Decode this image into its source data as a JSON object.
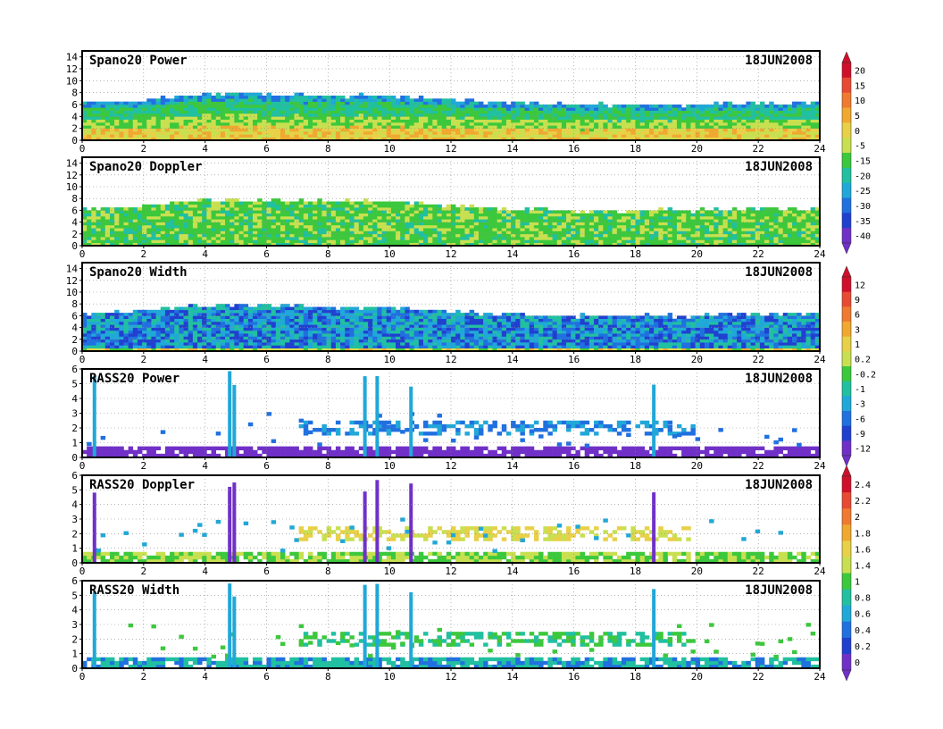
{
  "chart_data": [
    {
      "type": "heatmap",
      "title": "Spano20 Power",
      "date": "18JUN2008",
      "xlim": [
        0,
        24
      ],
      "x_ticks": [
        "0",
        "2",
        "4",
        "6",
        "8",
        "10",
        "12",
        "14",
        "16",
        "18",
        "20",
        "22",
        "24"
      ],
      "ylim": [
        0,
        15
      ],
      "y_ticks": [
        "0",
        "2",
        "4",
        "6",
        "8",
        "10",
        "12",
        "14"
      ],
      "grid": true,
      "approx_top_height": [
        6.2,
        6.8,
        7.8,
        7.8,
        7.5,
        7.5,
        6.8,
        6.2,
        6.0,
        6.0,
        6.0,
        6.2,
        6.5
      ],
      "colorbar": {
        "labels": [
          "20",
          "15",
          "10",
          "5",
          "0",
          "-5",
          "-15",
          "-20",
          "-25",
          "-30",
          "-35",
          "-40"
        ],
        "colors": [
          "#d0102a",
          "#e84a32",
          "#f07a30",
          "#f0a830",
          "#e8d048",
          "#c8e050",
          "#3cc83c",
          "#20c0a0",
          "#20a8d8",
          "#2070e0",
          "#2040d0",
          "#7030c8"
        ]
      }
    },
    {
      "type": "heatmap",
      "title": "Spano20 Doppler",
      "date": "18JUN2008",
      "xlim": [
        0,
        24
      ],
      "x_ticks": [
        "0",
        "2",
        "4",
        "6",
        "8",
        "10",
        "12",
        "14",
        "16",
        "18",
        "20",
        "22",
        "24"
      ],
      "ylim": [
        0,
        15
      ],
      "y_ticks": [
        "0",
        "2",
        "4",
        "6",
        "8",
        "10",
        "12",
        "14"
      ],
      "grid": true,
      "approx_top_height": [
        6.2,
        6.8,
        7.8,
        7.8,
        7.5,
        7.5,
        6.8,
        6.2,
        6.0,
        6.0,
        6.0,
        6.2,
        6.5
      ]
    },
    {
      "type": "heatmap",
      "title": "Spano20 Width",
      "date": "18JUN2008",
      "xlim": [
        0,
        24
      ],
      "x_ticks": [
        "0",
        "2",
        "4",
        "6",
        "8",
        "10",
        "12",
        "14",
        "16",
        "18",
        "20",
        "22",
        "24"
      ],
      "ylim": [
        0,
        15
      ],
      "y_ticks": [
        "0",
        "2",
        "4",
        "6",
        "8",
        "10",
        "12",
        "14"
      ],
      "grid": true,
      "approx_top_height": [
        6.2,
        6.8,
        7.8,
        7.8,
        7.5,
        7.5,
        6.8,
        6.2,
        6.0,
        6.0,
        6.0,
        6.2,
        6.5
      ],
      "colorbar": {
        "labels": [
          "12",
          "9",
          "6",
          "3",
          "1",
          "0.2",
          "-0.2",
          "-1",
          "-3",
          "-6",
          "-9",
          "-12"
        ],
        "colors": [
          "#d0102a",
          "#e84a32",
          "#f07a30",
          "#f0a830",
          "#e8d048",
          "#c8e050",
          "#3cc83c",
          "#20c0a0",
          "#20a8d8",
          "#2070e0",
          "#2040d0",
          "#7030c8"
        ]
      }
    },
    {
      "type": "heatmap",
      "title": "RASS20 Power",
      "date": "18JUN2008",
      "xlim": [
        0,
        24
      ],
      "x_ticks": [
        "0",
        "2",
        "4",
        "6",
        "8",
        "10",
        "12",
        "14",
        "16",
        "18",
        "20",
        "22",
        "24"
      ],
      "ylim": [
        0,
        6
      ],
      "y_ticks": [
        "0",
        "1",
        "2",
        "3",
        "4",
        "5",
        "6"
      ],
      "grid": true,
      "vertical_spikes_x": [
        0.4,
        4.8,
        4.95,
        9.2,
        9.6,
        10.7,
        18.6
      ]
    },
    {
      "type": "heatmap",
      "title": "RASS20 Doppler",
      "date": "18JUN2008",
      "xlim": [
        0,
        24
      ],
      "x_ticks": [
        "0",
        "2",
        "4",
        "6",
        "8",
        "10",
        "12",
        "14",
        "16",
        "18",
        "20",
        "22",
        "24"
      ],
      "ylim": [
        0,
        6
      ],
      "y_ticks": [
        "0",
        "1",
        "2",
        "3",
        "4",
        "5",
        "6"
      ],
      "grid": true,
      "vertical_spikes_x": [
        0.4,
        4.8,
        4.95,
        9.2,
        9.6,
        10.7,
        18.6
      ],
      "colorbar": {
        "labels": [
          "2.4",
          "2.2",
          "2",
          "1.8",
          "1.6",
          "1.4",
          "1",
          "0.8",
          "0.6",
          "0.4",
          "0.2",
          "0"
        ],
        "colors": [
          "#d0102a",
          "#e84a32",
          "#f07a30",
          "#f0a830",
          "#e8d048",
          "#c8e050",
          "#3cc83c",
          "#20c0a0",
          "#20a8d8",
          "#2070e0",
          "#2040d0",
          "#7030c8"
        ]
      }
    },
    {
      "type": "heatmap",
      "title": "RASS20 Width",
      "date": "18JUN2008",
      "xlim": [
        0,
        24
      ],
      "x_ticks": [
        "0",
        "2",
        "4",
        "6",
        "8",
        "10",
        "12",
        "14",
        "16",
        "18",
        "20",
        "22",
        "24"
      ],
      "ylim": [
        0,
        6
      ],
      "y_ticks": [
        "0",
        "1",
        "2",
        "3",
        "4",
        "5",
        "6"
      ],
      "grid": true,
      "vertical_spikes_x": [
        0.4,
        4.8,
        4.95,
        9.2,
        9.6,
        10.7,
        18.6
      ]
    }
  ]
}
